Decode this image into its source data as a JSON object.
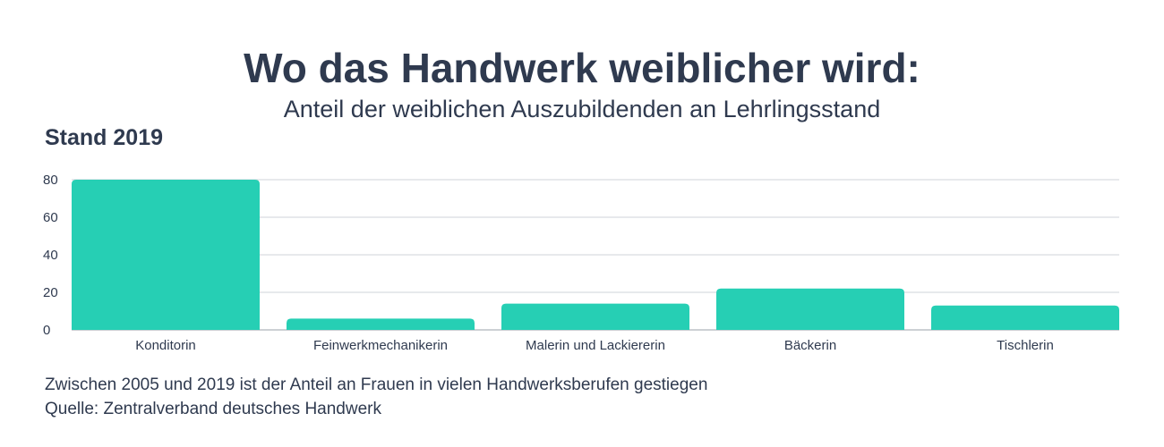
{
  "title": "Wo das Handwerk weiblicher wird:",
  "subtitle": "Anteil der weiblichen Auszubildenden an Lehrlingsstand",
  "stand_label": "Stand 2019",
  "footer": {
    "note": "Zwischen 2005 und 2019 ist der Anteil an Frauen in vielen Handwerksberufen gestiegen",
    "source": "Quelle: Zentralverband deutsches Handwerk"
  },
  "chart_data": {
    "type": "bar",
    "categories": [
      "Konditorin",
      "Feinwerkmechanikerin",
      "Malerin und Lackiererin",
      "Bäckerin",
      "Tischlerin"
    ],
    "values": [
      80,
      6,
      14,
      22,
      13
    ],
    "ylim": [
      0,
      80
    ],
    "yticks": [
      0,
      20,
      40,
      60,
      80
    ],
    "grid": true,
    "bar_color": "#26cfb4",
    "grid_color": "#cfd3d8",
    "text_color": "#2f3a4f"
  }
}
